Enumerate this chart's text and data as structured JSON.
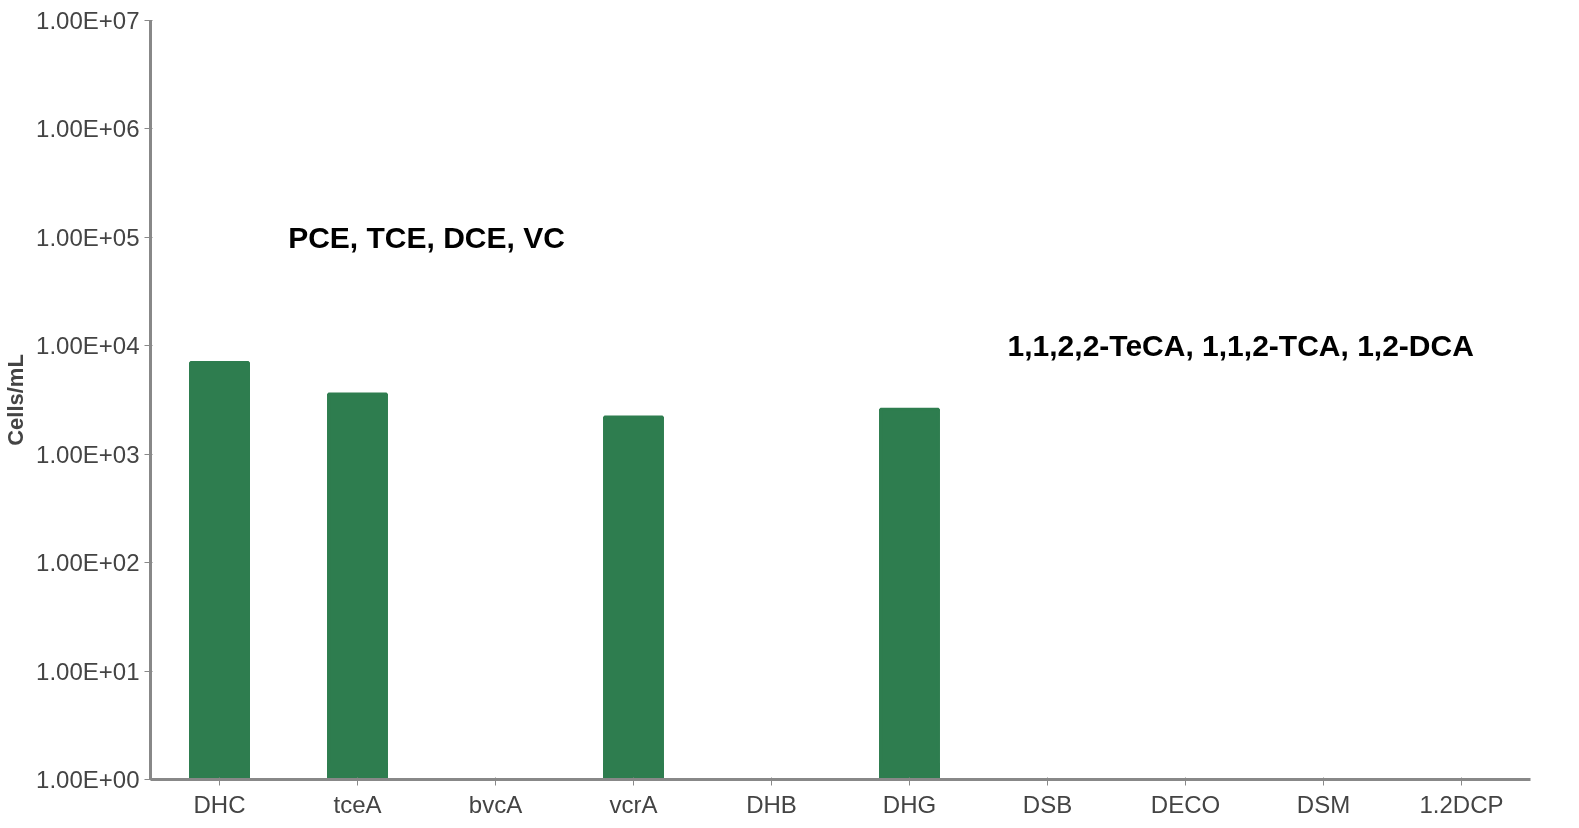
{
  "chart_data": {
    "type": "bar",
    "ylabel": "Cells/mL",
    "categories": [
      "DHC",
      "tceA",
      "bvcA",
      "vcrA",
      "DHB",
      "DHG",
      "DSB",
      "DECO",
      "DSM",
      "1.2DCP"
    ],
    "series": [
      {
        "color": "#2e7d4f",
        "values": [
          7000,
          3600,
          1,
          2200,
          1,
          2600,
          1,
          1,
          1,
          1
        ]
      }
    ],
    "log": "y",
    "ylim": [
      1,
      10000000
    ],
    "yticks": [
      {
        "value": 1,
        "label": "1.00E+00"
      },
      {
        "value": 10,
        "label": "1.00E+01"
      },
      {
        "value": 100,
        "label": "1.00E+02"
      },
      {
        "value": 1000,
        "label": "1.00E+03"
      },
      {
        "value": 10000,
        "label": "1.00E+04"
      },
      {
        "value": 100000,
        "label": "1.00E+05"
      },
      {
        "value": 1000000,
        "label": "1.00E+06"
      },
      {
        "value": 10000000,
        "label": "1.00E+07"
      }
    ],
    "grid": false,
    "annotations": [
      "PCE, TCE, DCE, VC",
      "1,1,2,2-TeCA, 1,1,2-TCA, 1,2-DCA"
    ]
  }
}
